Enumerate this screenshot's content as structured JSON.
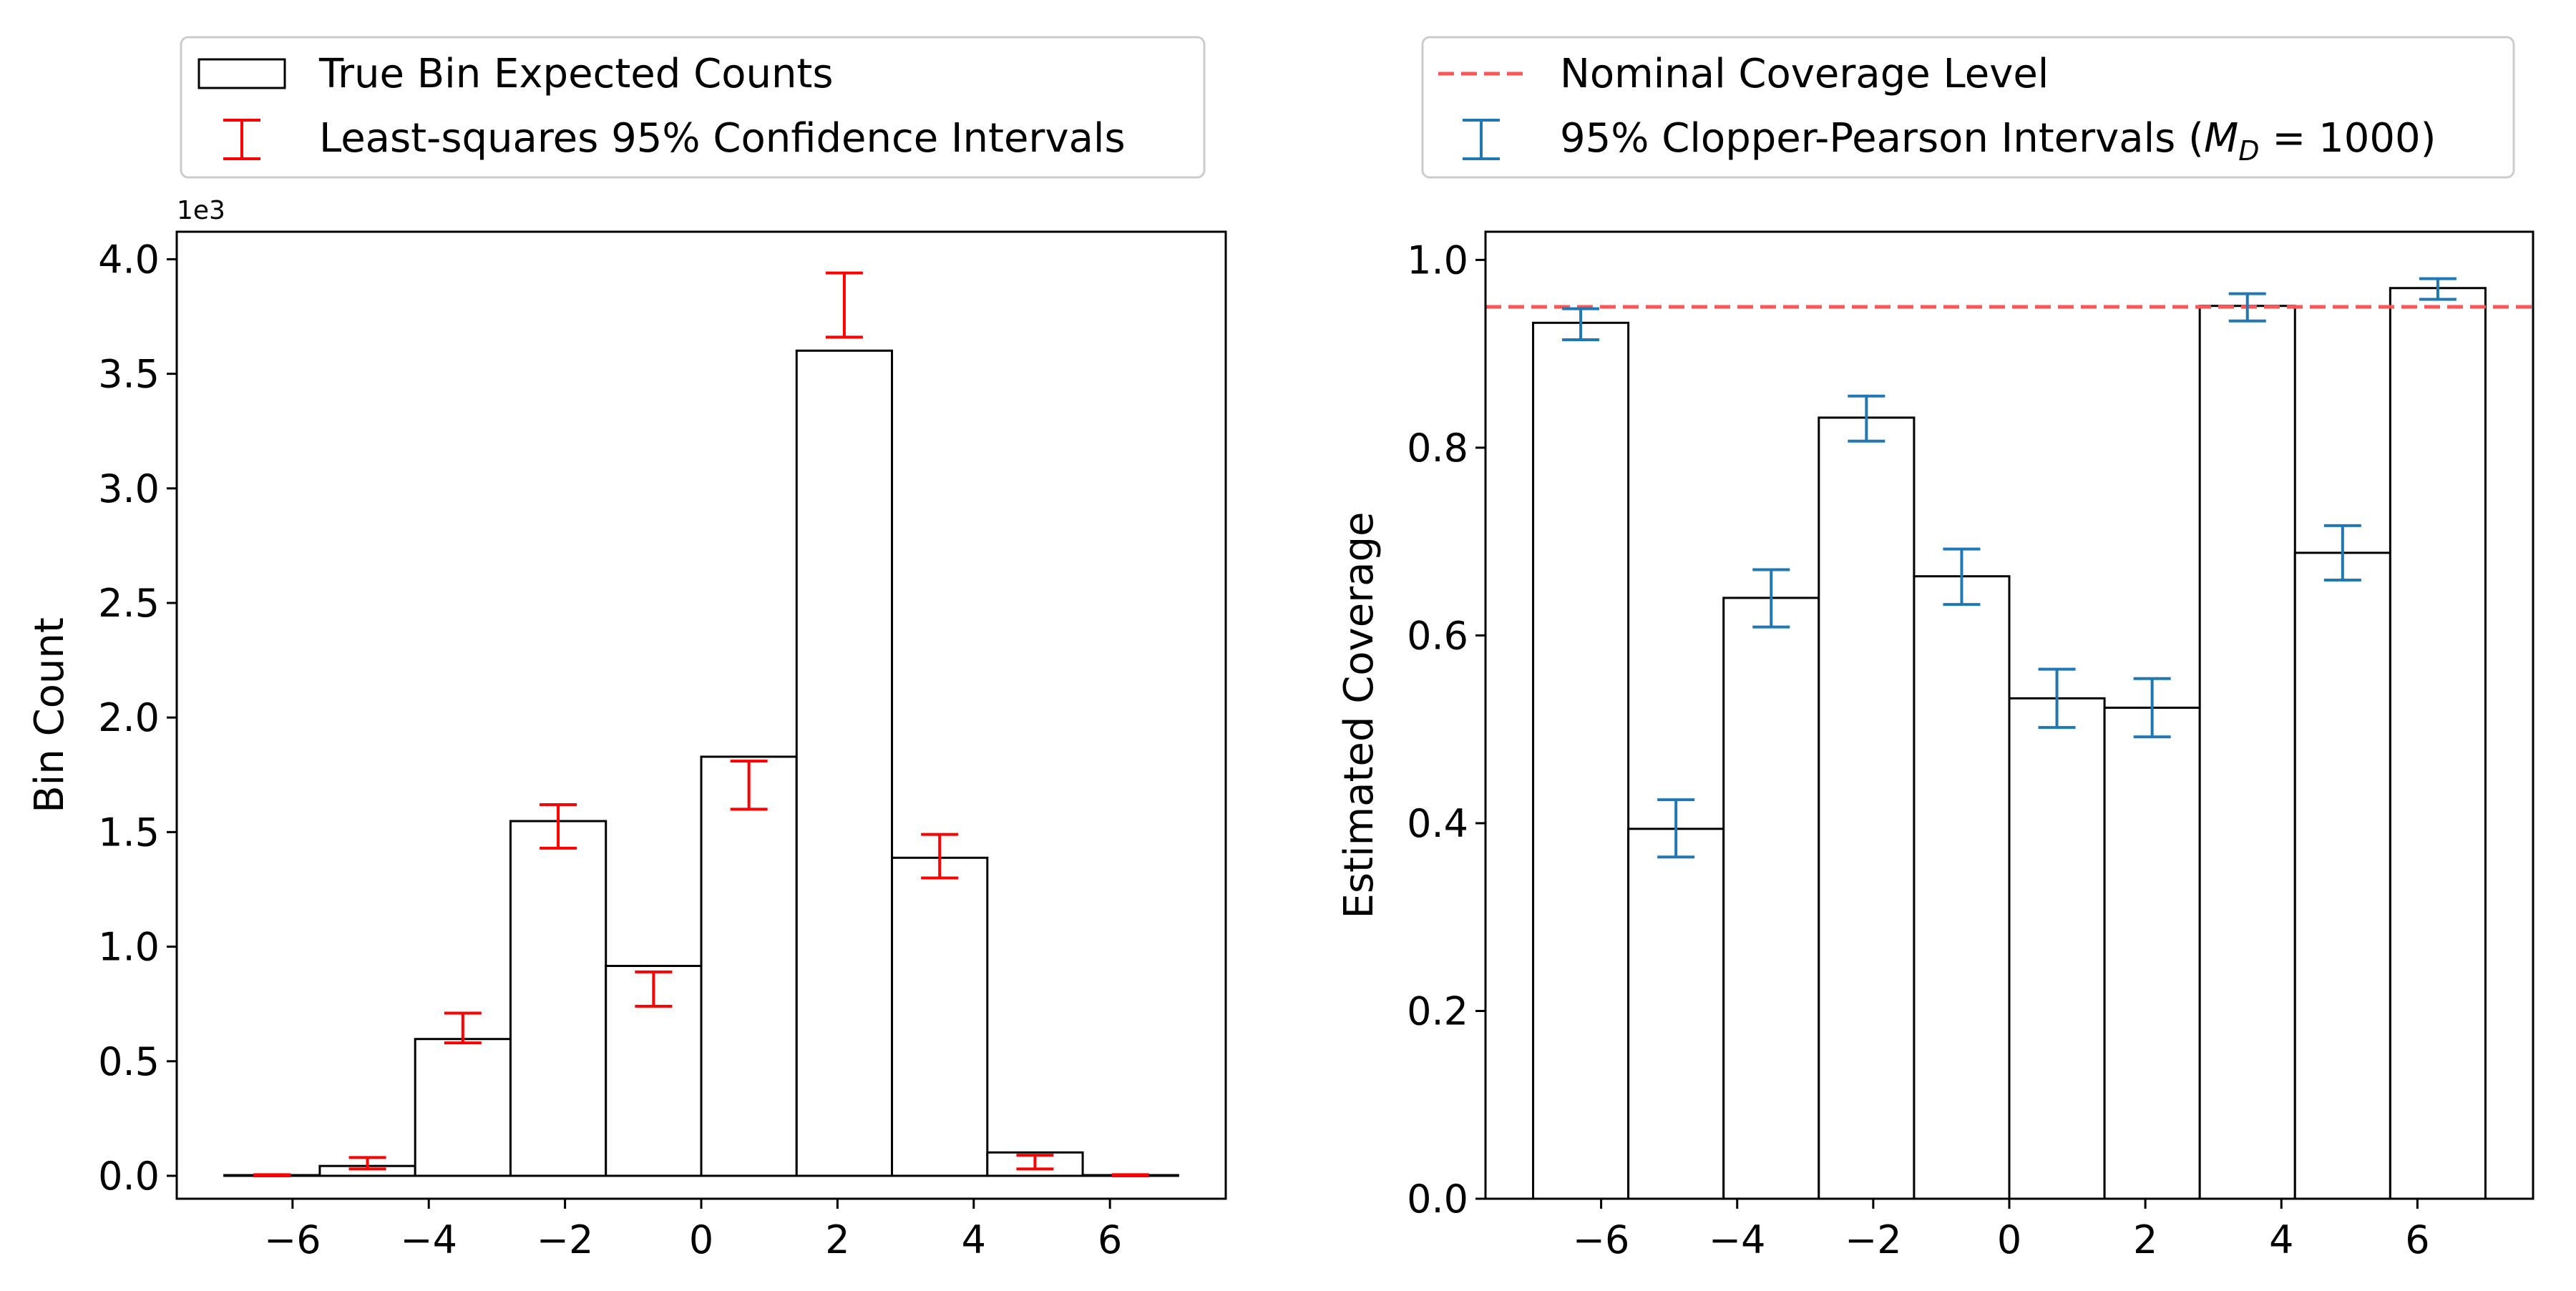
{
  "chart_data": [
    {
      "type": "bar",
      "title": "",
      "xlabel": "",
      "ylabel": "Bin Count",
      "y_offset_text": "1e3",
      "xlim": [
        -7.7,
        7.7
      ],
      "ylim": [
        -0.1,
        4.12
      ],
      "xticks": [
        -6,
        -4,
        -2,
        0,
        2,
        4,
        6
      ],
      "xtick_labels": [
        "−6",
        "−4",
        "−2",
        "0",
        "2",
        "4",
        "6"
      ],
      "yticks": [
        0.0,
        0.5,
        1.0,
        1.5,
        2.0,
        2.5,
        3.0,
        3.5,
        4.0
      ],
      "ytick_labels": [
        "0.0",
        "0.5",
        "1.0",
        "1.5",
        "2.0",
        "2.5",
        "3.0",
        "3.5",
        "4.0"
      ],
      "bin_edges": [
        -7,
        -5.6,
        -4.2,
        -2.8,
        -1.4,
        0,
        1.4,
        2.8,
        4.2,
        5.6,
        7
      ],
      "series": [
        {
          "name": "True Bin Expected Counts",
          "values": [
            0.003,
            0.043,
            0.597,
            1.548,
            0.916,
            1.829,
            3.601,
            1.388,
            0.102,
            0.003
          ],
          "color": "#000000"
        },
        {
          "name": "Least-squares 95% Confidence Intervals",
          "x": [
            -6.3,
            -4.9,
            -3.5,
            -2.1,
            -0.7,
            0.7,
            2.1,
            3.5,
            4.9,
            6.3
          ],
          "lower": [
            0.0,
            0.03,
            0.58,
            1.43,
            0.74,
            1.6,
            3.66,
            1.3,
            0.03,
            0.0
          ],
          "upper": [
            0.005,
            0.08,
            0.71,
            1.62,
            0.89,
            1.81,
            3.94,
            1.49,
            0.09,
            0.005
          ],
          "color": "#ff0000"
        }
      ],
      "legend": {
        "placement": "top, above plot",
        "entries": [
          "True Bin Expected Counts",
          "Least-squares 95% Confidence Intervals"
        ]
      }
    },
    {
      "type": "bar",
      "title": "",
      "xlabel": "",
      "ylabel": "Estimated Coverage",
      "xlim": [
        -7.7,
        7.7
      ],
      "ylim": [
        0.0,
        1.03
      ],
      "xticks": [
        -6,
        -4,
        -2,
        0,
        2,
        4,
        6
      ],
      "xtick_labels": [
        "−6",
        "−4",
        "−2",
        "0",
        "2",
        "4",
        "6"
      ],
      "yticks": [
        0.0,
        0.2,
        0.4,
        0.6,
        0.8,
        1.0
      ],
      "ytick_labels": [
        "0.0",
        "0.2",
        "0.4",
        "0.6",
        "0.8",
        "1.0"
      ],
      "bin_edges": [
        -7,
        -5.6,
        -4.2,
        -2.8,
        -1.4,
        0,
        1.4,
        2.8,
        4.2,
        5.6,
        7
      ],
      "reference_line": {
        "name": "Nominal Coverage Level",
        "y": 0.95,
        "color": "#ff5555",
        "style": "dashed"
      },
      "series": [
        {
          "name": "Estimated Coverage",
          "values": [
            0.933,
            0.394,
            0.64,
            0.832,
            0.663,
            0.533,
            0.523,
            0.951,
            0.688,
            0.97
          ],
          "color": "#000000"
        },
        {
          "name": "95% Clopper-Pearson Intervals (M_D = 1000)",
          "x": [
            -6.3,
            -4.9,
            -3.5,
            -2.1,
            -0.7,
            0.7,
            2.1,
            3.5,
            4.9,
            6.3
          ],
          "lower": [
            0.915,
            0.364,
            0.609,
            0.807,
            0.633,
            0.502,
            0.492,
            0.935,
            0.659,
            0.958
          ],
          "upper": [
            0.948,
            0.425,
            0.67,
            0.855,
            0.692,
            0.564,
            0.554,
            0.964,
            0.717,
            0.98
          ],
          "color": "#1f77b4"
        }
      ],
      "legend": {
        "placement": "top, above plot",
        "entries": [
          "Nominal Coverage Level",
          "95% Clopper-Pearson Intervals (M_D = 1000)"
        ],
        "cp_label_prefix": "95% Clopper-Pearson Intervals (",
        "cp_label_M": "M",
        "cp_label_sub": "D",
        "cp_label_suffix": " = 1000)"
      }
    }
  ]
}
